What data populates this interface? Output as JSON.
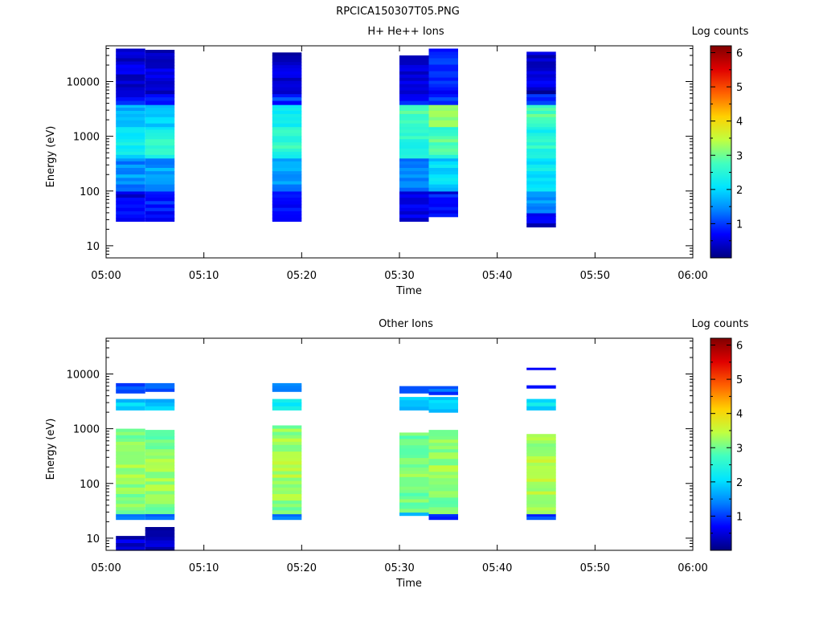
{
  "figure_title": "RPCICA150307T05.PNG",
  "colorscale": [
    "#000080",
    "#0000ff",
    "#0080ff",
    "#00e5ff",
    "#40ffc0",
    "#c0ff40",
    "#ffd000",
    "#ff6000",
    "#e00000",
    "#800000"
  ],
  "chart_data": [
    {
      "type": "heatmap",
      "title": "H+ He++ Ions",
      "xlabel": "Time",
      "ylabel": "Energy (eV)",
      "colorbar_label": "Log counts",
      "x_ticks": [
        "05:00",
        "05:10",
        "05:20",
        "05:30",
        "05:40",
        "05:50",
        "06:00"
      ],
      "xlim": [
        "05:00",
        "06:00"
      ],
      "ylim": [
        6,
        45000
      ],
      "y_scale": "log",
      "y_ticks": [
        10,
        100,
        1000,
        10000
      ],
      "y_tick_labels": [
        "10",
        "100",
        "1000",
        "10000"
      ],
      "colorbar_range": [
        0,
        6.2
      ],
      "colorbar_ticks": [
        "1",
        "2",
        "3",
        "4",
        "5",
        "6"
      ],
      "scans": [
        {
          "start": "05:01",
          "end": "05:04",
          "emin": 28,
          "emax": 40000,
          "bands": [
            {
              "emin": 28,
              "emax": 100,
              "value": 0.4
            },
            {
              "emin": 100,
              "emax": 400,
              "value": 1.3
            },
            {
              "emin": 400,
              "emax": 1500,
              "value": 2.1
            },
            {
              "emin": 1500,
              "emax": 3800,
              "value": 1.6
            },
            {
              "emin": 3800,
              "emax": 6000,
              "value": 0.6
            },
            {
              "emin": 6000,
              "emax": 40000,
              "value": 0.25
            }
          ]
        },
        {
          "start": "05:04",
          "end": "05:07",
          "emin": 28,
          "emax": 38000,
          "bands": [
            {
              "emin": 28,
              "emax": 100,
              "value": 0.6
            },
            {
              "emin": 100,
              "emax": 400,
              "value": 1.4
            },
            {
              "emin": 400,
              "emax": 1500,
              "value": 2.3
            },
            {
              "emin": 1500,
              "emax": 3800,
              "value": 1.8
            },
            {
              "emin": 3800,
              "emax": 6000,
              "value": 0.7
            },
            {
              "emin": 6000,
              "emax": 38000,
              "value": 0.3
            }
          ]
        },
        {
          "start": "05:17",
          "end": "05:20",
          "emin": 28,
          "emax": 34000,
          "bands": [
            {
              "emin": 28,
              "emax": 100,
              "value": 0.5
            },
            {
              "emin": 100,
              "emax": 400,
              "value": 1.4
            },
            {
              "emin": 400,
              "emax": 1500,
              "value": 2.4
            },
            {
              "emin": 1500,
              "emax": 3800,
              "value": 2.1
            },
            {
              "emin": 3800,
              "emax": 6000,
              "value": 0.8
            },
            {
              "emin": 6000,
              "emax": 34000,
              "value": 0.3
            }
          ]
        },
        {
          "start": "05:30",
          "end": "05:33",
          "emin": 28,
          "emax": 30000,
          "bands": [
            {
              "emin": 28,
              "emax": 100,
              "value": 0.4
            },
            {
              "emin": 100,
              "emax": 400,
              "value": 1.3
            },
            {
              "emin": 400,
              "emax": 1500,
              "value": 2.3
            },
            {
              "emin": 1500,
              "emax": 3800,
              "value": 2.5
            },
            {
              "emin": 3800,
              "emax": 6000,
              "value": 0.6
            },
            {
              "emin": 6000,
              "emax": 30000,
              "value": 0.2
            }
          ]
        },
        {
          "start": "05:33",
          "end": "05:36",
          "emin": 34,
          "emax": 40000,
          "bands": [
            {
              "emin": 34,
              "emax": 100,
              "value": 0.6
            },
            {
              "emin": 100,
              "emax": 400,
              "value": 1.8
            },
            {
              "emin": 400,
              "emax": 1500,
              "value": 2.6
            },
            {
              "emin": 1500,
              "emax": 3800,
              "value": 3.1
            },
            {
              "emin": 3800,
              "emax": 6000,
              "value": 0.7
            },
            {
              "emin": 6000,
              "emax": 40000,
              "value": 0.7
            }
          ]
        },
        {
          "start": "05:43",
          "end": "05:46",
          "emin": 22,
          "emax": 35000,
          "bands": [
            {
              "emin": 22,
              "emax": 40,
              "value": 0.3
            },
            {
              "emin": 40,
              "emax": 100,
              "value": 1.3
            },
            {
              "emin": 100,
              "emax": 400,
              "value": 1.9
            },
            {
              "emin": 400,
              "emax": 1500,
              "value": 2.3
            },
            {
              "emin": 1500,
              "emax": 3800,
              "value": 2.6
            },
            {
              "emin": 3800,
              "emax": 6000,
              "value": 0.7
            },
            {
              "emin": 6000,
              "emax": 35000,
              "value": 0.3
            }
          ]
        }
      ]
    },
    {
      "type": "heatmap",
      "title": "Other Ions",
      "xlabel": "Time",
      "ylabel": "Energy (eV)",
      "colorbar_label": "Log counts",
      "x_ticks": [
        "05:00",
        "05:10",
        "05:20",
        "05:30",
        "05:40",
        "05:50",
        "06:00"
      ],
      "xlim": [
        "05:00",
        "06:00"
      ],
      "ylim": [
        6,
        45000
      ],
      "y_scale": "log",
      "y_ticks": [
        10,
        100,
        1000,
        10000
      ],
      "y_tick_labels": [
        "10",
        "100",
        "1000",
        "10000"
      ],
      "colorbar_range": [
        0,
        6.2
      ],
      "colorbar_ticks": [
        "1",
        "2",
        "3",
        "4",
        "5",
        "6"
      ],
      "scans": [
        {
          "start": "05:01",
          "end": "05:04",
          "emin": 6,
          "emax": 6800,
          "bands": [
            {
              "emin": 6,
              "emax": 11,
              "value": 0.2
            },
            {
              "emin": 22,
              "emax": 28,
              "value": 1.0
            },
            {
              "emin": 28,
              "emax": 1000,
              "value": 3.0
            },
            {
              "emin": 2200,
              "emax": 3500,
              "value": 1.7
            },
            {
              "emin": 4500,
              "emax": 6800,
              "value": 0.9
            }
          ]
        },
        {
          "start": "05:04",
          "end": "05:07",
          "emin": 6,
          "emax": 6800,
          "bands": [
            {
              "emin": 6,
              "emax": 16,
              "value": 0.2
            },
            {
              "emin": 22,
              "emax": 28,
              "value": 0.9
            },
            {
              "emin": 28,
              "emax": 950,
              "value": 3.0
            },
            {
              "emin": 2200,
              "emax": 3500,
              "value": 1.7
            },
            {
              "emin": 4800,
              "emax": 6800,
              "value": 1.0
            }
          ]
        },
        {
          "start": "05:17",
          "end": "05:20",
          "emin": 22,
          "emax": 6800,
          "bands": [
            {
              "emin": 22,
              "emax": 28,
              "value": 1.3
            },
            {
              "emin": 28,
              "emax": 1150,
              "value": 3.1
            },
            {
              "emin": 2200,
              "emax": 3500,
              "value": 2.0
            },
            {
              "emin": 4800,
              "emax": 6800,
              "value": 1.3
            }
          ]
        },
        {
          "start": "05:30",
          "end": "05:33",
          "emin": 26,
          "emax": 6000,
          "bands": [
            {
              "emin": 26,
              "emax": 30,
              "value": 1.3
            },
            {
              "emin": 30,
              "emax": 850,
              "value": 2.9
            },
            {
              "emin": 2200,
              "emax": 3800,
              "value": 1.7
            },
            {
              "emin": 4500,
              "emax": 6000,
              "value": 0.9
            }
          ]
        },
        {
          "start": "05:33",
          "end": "05:36",
          "emin": 22,
          "emax": 6000,
          "bands": [
            {
              "emin": 22,
              "emax": 28,
              "value": 0.6
            },
            {
              "emin": 28,
              "emax": 950,
              "value": 3.0
            },
            {
              "emin": 2000,
              "emax": 3800,
              "value": 1.8
            },
            {
              "emin": 4200,
              "emax": 6000,
              "value": 0.9
            }
          ]
        },
        {
          "start": "05:43",
          "end": "05:46",
          "emin": 22,
          "emax": 13000,
          "bands": [
            {
              "emin": 22,
              "emax": 28,
              "value": 0.8
            },
            {
              "emin": 28,
              "emax": 800,
              "value": 3.2
            },
            {
              "emin": 2200,
              "emax": 3500,
              "value": 1.9
            },
            {
              "emin": 5500,
              "emax": 6200,
              "value": 0.6
            },
            {
              "emin": 12000,
              "emax": 13000,
              "value": 0.5
            }
          ]
        }
      ]
    }
  ]
}
